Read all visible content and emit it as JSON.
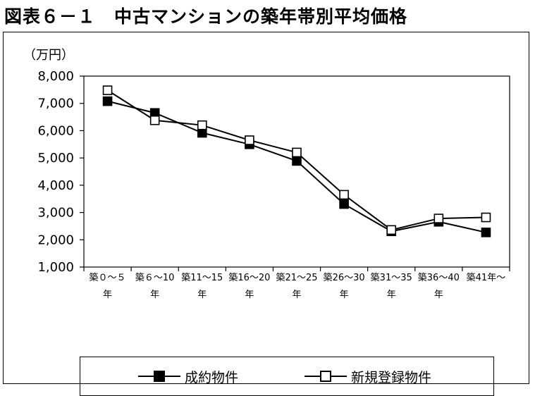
{
  "title": "図表６－１　中古マンションの築年帯別平均価格",
  "chart_data": {
    "type": "line",
    "title": "図表６－１　中古マンションの築年帯別平均価格",
    "ylabel": "（万円）",
    "xlabel": "",
    "ylim": [
      1000,
      8000
    ],
    "yticks": [
      1000,
      2000,
      3000,
      4000,
      5000,
      6000,
      7000,
      8000
    ],
    "ytick_labels": [
      "1,000",
      "2,000",
      "3,000",
      "4,000",
      "5,000",
      "6,000",
      "7,000",
      "8,000"
    ],
    "categories": [
      "築０～５年",
      "築６～10年",
      "築11～15年",
      "築16～20年",
      "築21～25年",
      "築26～30年",
      "築31～35年",
      "築36～40年",
      "築41年～"
    ],
    "category_lines": [
      [
        "築０～５",
        "年"
      ],
      [
        "築６～10",
        "年"
      ],
      [
        "築11～15",
        "年"
      ],
      [
        "築16～20",
        "年"
      ],
      [
        "築21～25",
        "年"
      ],
      [
        "築26～30",
        "年"
      ],
      [
        "築31～35",
        "年"
      ],
      [
        "築36～40",
        "年"
      ],
      [
        "築41年～",
        ""
      ]
    ],
    "grid": false,
    "legend_position": "bottom",
    "series": [
      {
        "name": "成約物件",
        "marker": "filled-square",
        "color": "#000000",
        "values": [
          7080,
          6650,
          5920,
          5500,
          4890,
          3310,
          2310,
          2660,
          2270
        ]
      },
      {
        "name": "新規登録物件",
        "marker": "open-square",
        "color": "#000000",
        "values": [
          7480,
          6380,
          6200,
          5650,
          5200,
          3650,
          2360,
          2780,
          2820
        ]
      }
    ]
  }
}
